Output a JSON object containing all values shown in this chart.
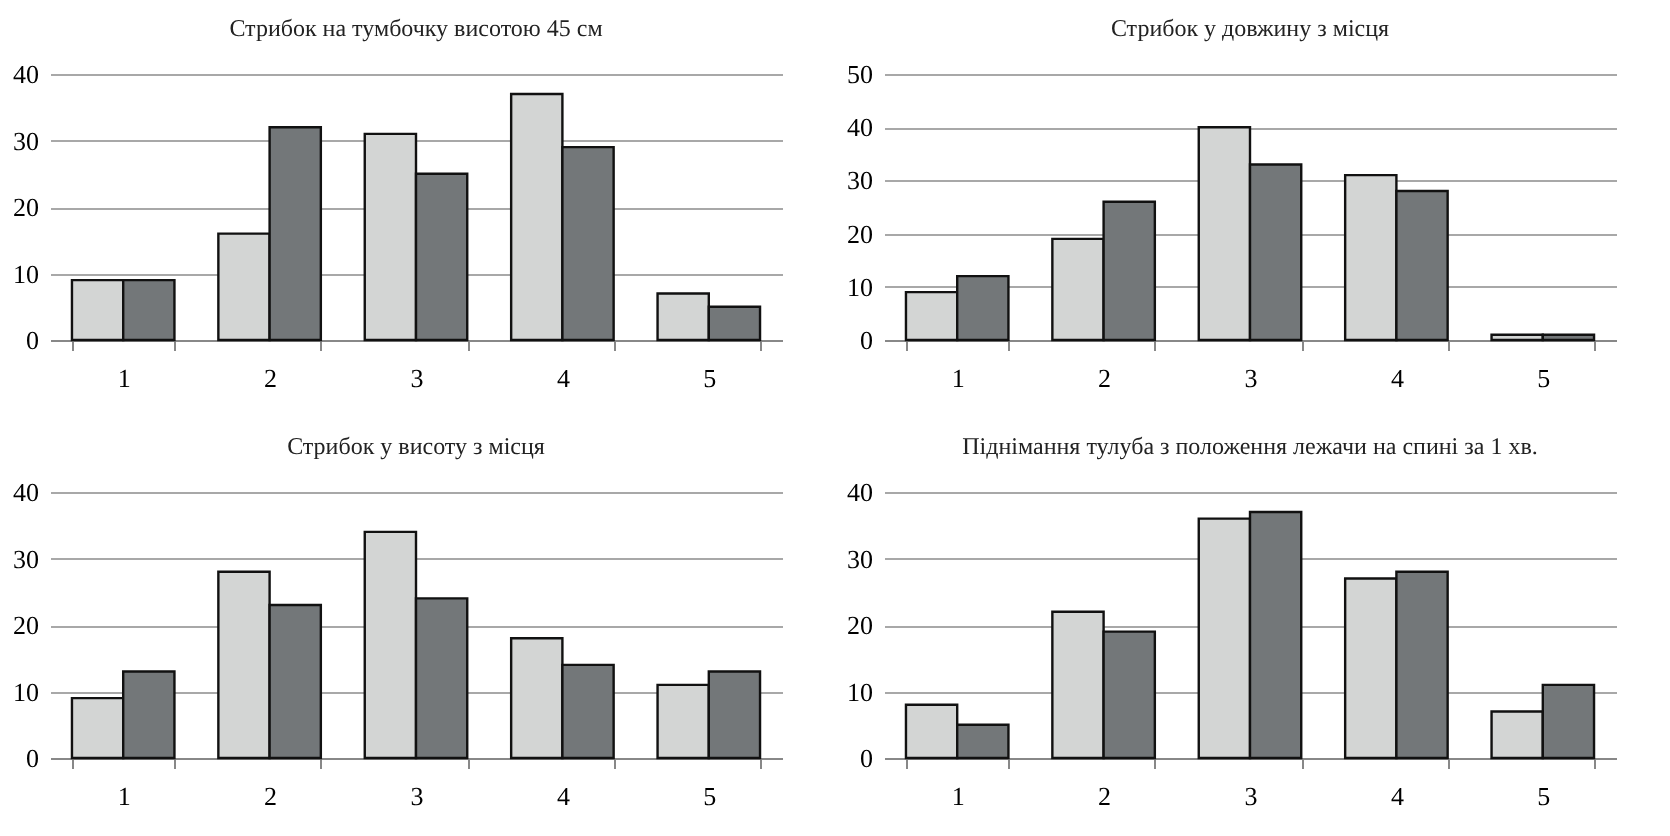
{
  "chart_data": [
    {
      "type": "bar",
      "title": "Стрибок на тумбочку висотою 45 см",
      "categories": [
        "1",
        "2",
        "3",
        "4",
        "5"
      ],
      "ylim": [
        0,
        40
      ],
      "yticks": [
        0,
        10,
        20,
        30,
        40
      ],
      "grid": "y",
      "series": [
        {
          "color": "#d3d5d4",
          "values": [
            9,
            16,
            31,
            37,
            7
          ]
        },
        {
          "color": "#737779",
          "values": [
            9,
            32,
            25,
            29,
            5
          ]
        }
      ]
    },
    {
      "type": "bar",
      "title": "Стрибок у довжину з місця",
      "categories": [
        "1",
        "2",
        "3",
        "4",
        "5"
      ],
      "ylim": [
        0,
        50
      ],
      "yticks": [
        0,
        10,
        20,
        30,
        40,
        50
      ],
      "grid": "y",
      "series": [
        {
          "color": "#d3d5d4",
          "values": [
            9,
            19,
            40,
            31,
            1
          ]
        },
        {
          "color": "#737779",
          "values": [
            12,
            26,
            33,
            28,
            1
          ]
        }
      ]
    },
    {
      "type": "bar",
      "title": "Стрибок у висоту з місця",
      "categories": [
        "1",
        "2",
        "3",
        "4",
        "5"
      ],
      "ylim": [
        0,
        40
      ],
      "yticks": [
        0,
        10,
        20,
        30,
        40
      ],
      "grid": "y",
      "series": [
        {
          "color": "#d3d5d4",
          "values": [
            9,
            28,
            34,
            18,
            11
          ]
        },
        {
          "color": "#737779",
          "values": [
            13,
            23,
            24,
            14,
            13
          ]
        }
      ]
    },
    {
      "type": "bar",
      "title": "Піднімання тулуба з положення лежачи на спині за 1 хв.",
      "categories": [
        "1",
        "2",
        "3",
        "4",
        "5"
      ],
      "ylim": [
        0,
        40
      ],
      "yticks": [
        0,
        10,
        20,
        30,
        40
      ],
      "grid": "y",
      "series": [
        {
          "color": "#d3d5d4",
          "values": [
            8,
            22,
            36,
            27,
            7
          ]
        },
        {
          "color": "#737779",
          "values": [
            5,
            19,
            37,
            28,
            11
          ]
        }
      ]
    }
  ]
}
